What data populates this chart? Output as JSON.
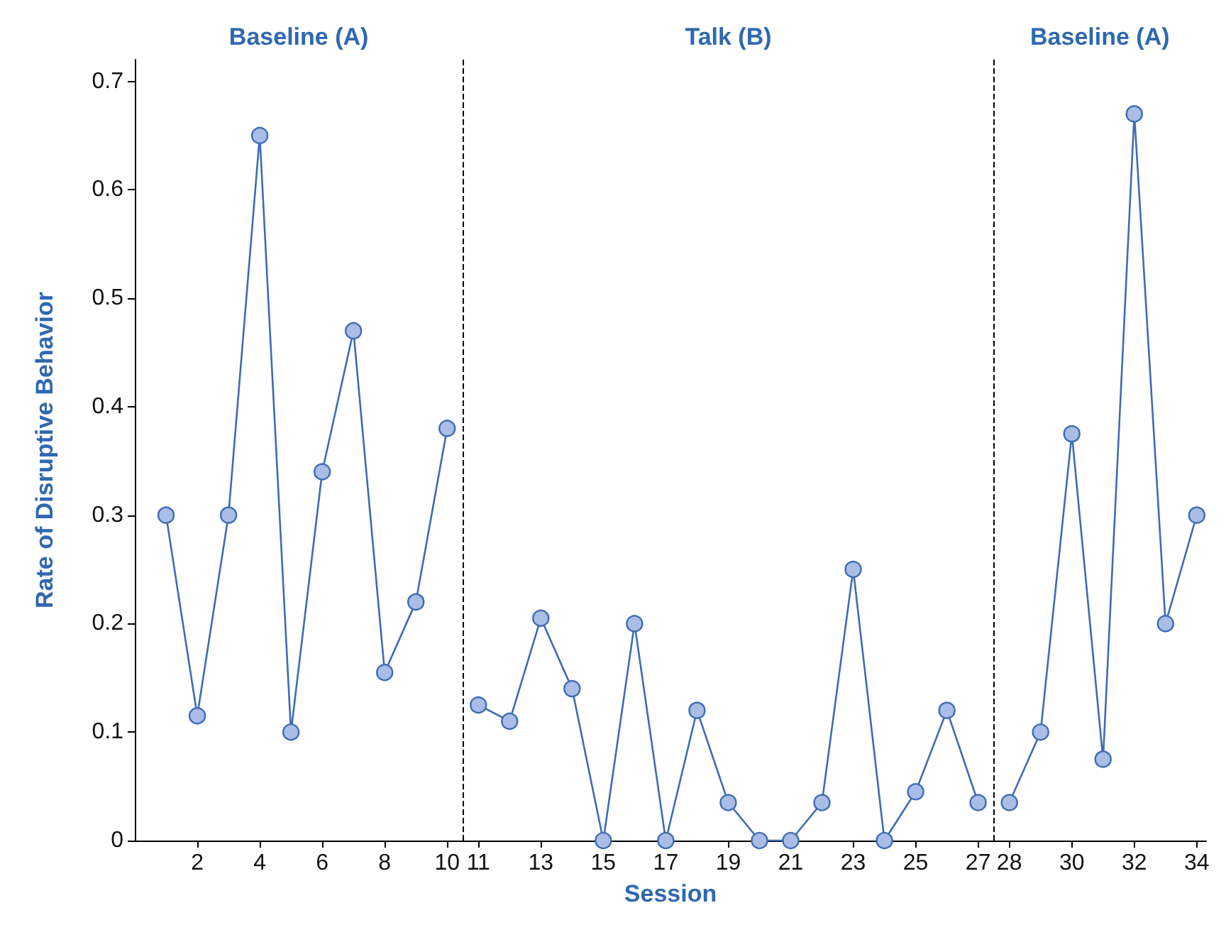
{
  "chart_data": {
    "type": "line",
    "xlabel": "Session",
    "ylabel": "Rate of Disruptive Behavior",
    "annotations": [
      "Baseline (A)",
      "Talk (B)",
      "Baseline (A)"
    ],
    "series": [
      {
        "color": "#3d6cb4",
        "x": [
          1,
          2,
          3,
          4,
          5,
          6,
          7,
          8,
          9,
          10
        ],
        "values": [
          0.3,
          0.115,
          0.3,
          0.65,
          0.1,
          0.34,
          0.47,
          0.155,
          0.22,
          0.38
        ]
      },
      {
        "color": "#3d6cb4",
        "x": [
          11,
          12,
          13,
          14,
          15,
          16,
          17,
          18,
          19,
          20,
          21,
          22,
          23,
          24,
          25,
          26,
          27
        ],
        "values": [
          0.125,
          0.11,
          0.205,
          0.14,
          0,
          0.2,
          0,
          0.12,
          0.035,
          0,
          0,
          0.035,
          0.25,
          0,
          0.045,
          0.12,
          0.035
        ]
      },
      {
        "color": "#3d6cb4",
        "x": [
          28,
          29,
          30,
          31,
          32,
          33,
          34
        ],
        "values": [
          0.035,
          0.1,
          0.375,
          0.075,
          0.67,
          0.2,
          0.3
        ]
      }
    ],
    "xlim": [
      0,
      34.3
    ],
    "xticks": [
      2,
      4,
      6,
      8,
      10,
      11,
      13,
      15,
      17,
      19,
      21,
      23,
      25,
      27,
      28,
      30,
      32,
      34
    ],
    "ylim": [
      0,
      0.72
    ],
    "yticks": [
      0,
      0.1,
      0.2,
      0.3,
      0.4,
      0.5,
      0.6,
      0.7
    ],
    "ref_lines": [
      {
        "axis": "x",
        "value": 10.5,
        "color": "#000000",
        "line_style": "dashed"
      },
      {
        "axis": "x",
        "value": 27.5,
        "color": "#000000",
        "line_style": "dashed"
      }
    ],
    "grid": false,
    "marker": "circle",
    "line_style": "solid"
  }
}
